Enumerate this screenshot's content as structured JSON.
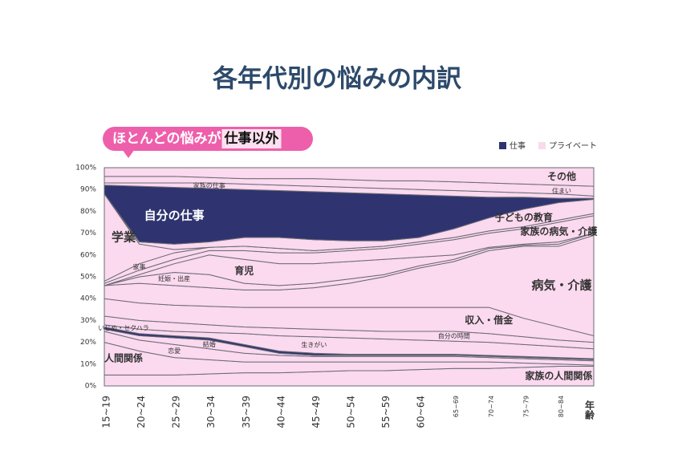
{
  "chart_data": {
    "type": "stacked_area",
    "title": "各年代別の悩みの内訳",
    "annotation": {
      "text": "ほとんどの悩みが",
      "highlight": "仕事以外"
    },
    "xlabel": "年齢",
    "categories": [
      "15~19",
      "20~24",
      "25~29",
      "30~34",
      "35~39",
      "40~44",
      "45~49",
      "50~54",
      "55~59",
      "60~64",
      "65~69",
      "70~74",
      "75~79",
      "80~84",
      null
    ],
    "ylim": [
      0,
      100
    ],
    "yticks": [
      {
        "value": 0,
        "label": "0%"
      },
      {
        "value": 10,
        "label": "10%"
      },
      {
        "value": 20,
        "label": "20%"
      },
      {
        "value": 30,
        "label": "30%"
      },
      {
        "value": 40,
        "label": "40%"
      },
      {
        "value": 50,
        "label": "50%"
      },
      {
        "value": 60,
        "label": "60%"
      },
      {
        "value": 70,
        "label": "70%"
      },
      {
        "value": 80,
        "label": "80%"
      },
      {
        "value": 90,
        "label": "90%"
      },
      {
        "value": 100,
        "label": "100%"
      }
    ],
    "legend": [
      {
        "name": "仕事",
        "color": "#2f3470"
      },
      {
        "name": "プライベート",
        "color": "#fbd9ef"
      }
    ],
    "series": [
      {
        "name": "家族の人間関係",
        "color": "#fbd9ef",
        "values": [
          5,
          5,
          5,
          5.5,
          6,
          6,
          6.5,
          7,
          7,
          7.5,
          8,
          8,
          8.5,
          9,
          9
        ]
      },
      {
        "name": "人間関係",
        "color": "#fbd9ef",
        "values": [
          15,
          11,
          8,
          6.5,
          5,
          5,
          4.5,
          4,
          4,
          3.5,
          3,
          3,
          2,
          1,
          0.5
        ]
      },
      {
        "name": "恋愛",
        "color": "#fbd9ef",
        "values": [
          5,
          5,
          6,
          5,
          4,
          3,
          2.5,
          2.5,
          2.5,
          2.5,
          2.5,
          2,
          2,
          2,
          2
        ]
      },
      {
        "name": "結婚",
        "color": "#fbd9ef",
        "values": [
          1,
          2,
          3,
          4,
          3,
          1,
          0.5,
          0.5,
          0.5,
          0.5,
          0.5,
          0.5,
          0.5,
          0.5,
          0.5
        ]
      },
      {
        "name": "いじめ・セクハラ",
        "color": "#2f3470",
        "values": [
          1,
          1,
          1,
          1,
          1,
          1,
          1,
          0.5,
          0.5,
          0.5,
          0.5,
          0.5,
          0.5,
          0.5,
          0.5
        ]
      },
      {
        "name": "生きがい",
        "color": "#fbd9ef",
        "values": [
          1,
          2,
          2,
          2.5,
          5,
          7,
          7.5,
          7.5,
          7,
          6.5,
          6,
          6,
          5.5,
          5,
          4.5
        ]
      },
      {
        "name": "自分の時間",
        "color": "#fbd9ef",
        "values": [
          4,
          4,
          4,
          3.5,
          3,
          3.5,
          3.5,
          3.5,
          3.5,
          4,
          4.5,
          4,
          3.5,
          3,
          3
        ]
      },
      {
        "name": "収入・借金",
        "color": "#fbd9ef",
        "values": [
          8,
          8,
          8,
          8.5,
          9,
          9.5,
          10,
          10.5,
          11,
          11,
          11,
          12,
          8.5,
          6,
          3
        ]
      },
      {
        "name": "病気・介護",
        "color": "#fbd9ef",
        "values": [
          6,
          9,
          9,
          8.5,
          8,
          8,
          9,
          11,
          14,
          18,
          21,
          26,
          33,
          37,
          46
        ]
      },
      {
        "name": "妊娠・出産",
        "color": "#fbd9ef",
        "values": [
          0,
          3,
          6,
          6,
          3,
          2,
          2,
          2,
          1,
          1,
          1,
          1,
          0.5,
          1,
          1
        ]
      },
      {
        "name": "育児",
        "color": "#fbd9ef",
        "values": [
          0,
          1,
          4,
          9,
          11,
          10,
          9,
          8,
          7,
          4,
          2,
          0.5,
          0.5,
          1,
          0
        ]
      },
      {
        "name": "家族の病気・介護",
        "color": "#fbd9ef",
        "values": [
          1,
          2,
          2,
          2,
          4,
          5,
          5,
          5,
          5,
          6,
          7,
          6.5,
          7,
          9,
          8
        ]
      },
      {
        "name": "家事",
        "color": "#fbd9ef",
        "values": [
          1,
          3,
          3,
          1.5,
          2,
          2,
          1,
          1,
          1,
          1,
          1,
          1,
          1,
          1,
          1
        ]
      },
      {
        "name": "学業",
        "color": "#fbd9ef",
        "values": [
          40,
          9,
          1.5,
          0,
          0,
          0,
          0,
          0,
          0,
          0,
          0,
          0,
          0,
          0,
          0
        ]
      },
      {
        "name": "子どもの教育",
        "color": "#fbd9ef",
        "values": [
          0,
          1,
          2.5,
          2.5,
          4,
          5,
          5,
          3.5,
          2.5,
          2,
          4,
          6,
          8,
          8,
          6.5
        ]
      },
      {
        "name": "自分の仕事",
        "color": "#2f3470",
        "values": [
          4,
          25.5,
          26,
          24.5,
          22,
          21.5,
          22,
          22,
          21.5,
          19.5,
          15,
          9.5,
          5.5,
          2,
          0.5
        ]
      },
      {
        "name": "家族の仕事",
        "color": "#fbd9ef",
        "values": [
          1,
          1.5,
          2,
          2.5,
          2.5,
          2.5,
          2.5,
          2.5,
          2.5,
          2.5,
          2.5,
          2.5,
          2,
          2,
          1
        ]
      },
      {
        "name": "住まい",
        "color": "#fbd9ef",
        "values": [
          3,
          3,
          3,
          2.5,
          2.5,
          3,
          3.5,
          3.5,
          3.5,
          4,
          4,
          4,
          4,
          4,
          4.5
        ]
      },
      {
        "name": "その他",
        "color": "#fbd9ef",
        "values": [
          4,
          4,
          4,
          4.5,
          5,
          5,
          5,
          5.5,
          6,
          6,
          6.5,
          7,
          7.5,
          8,
          8.5
        ]
      }
    ]
  }
}
